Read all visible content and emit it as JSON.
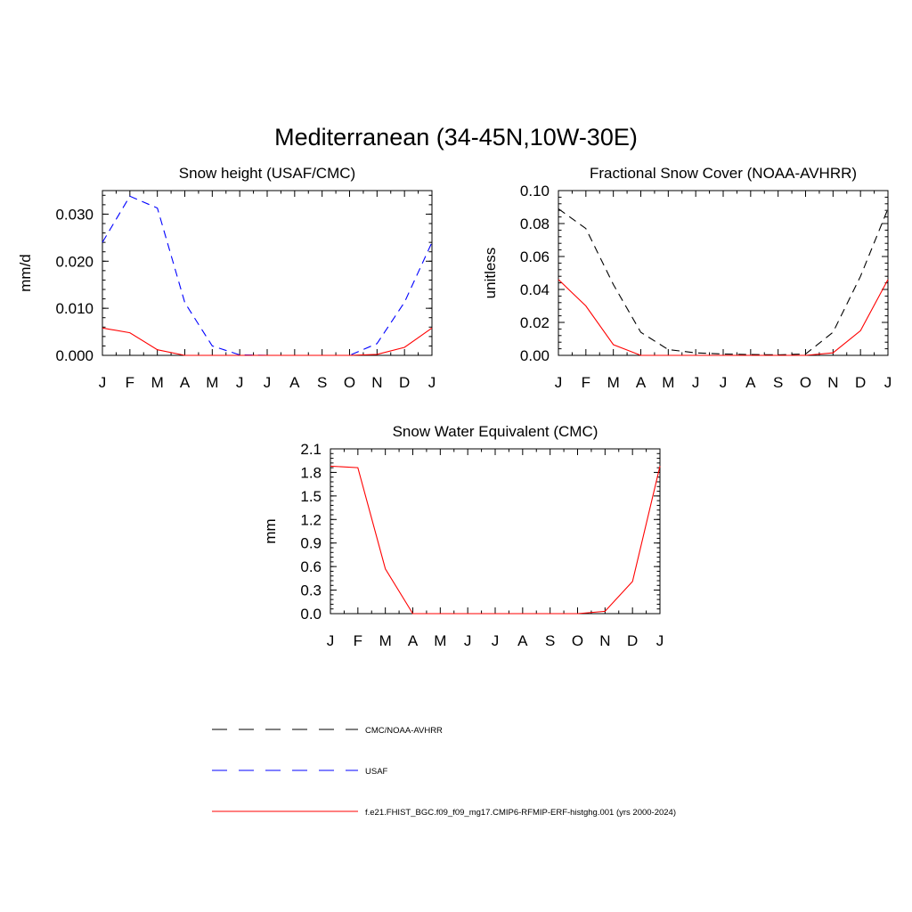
{
  "figure": {
    "title": "Mediterranean (34-45N,10W-30E)"
  },
  "legend": [
    {
      "label": "CMC/NOAA-AVHRR",
      "color": "#000000",
      "dash": "dashed"
    },
    {
      "label": "USAF",
      "color": "#0000ff",
      "dash": "dashed"
    },
    {
      "label": "f.e21.FHIST_BGC.f09_f09_mg17.CMIP6-RFMIP-ERF-histghg.001 (yrs 2000-2024)",
      "color": "#ff0000",
      "dash": "solid"
    }
  ],
  "chart_data": [
    {
      "type": "line",
      "title": "Snow height (USAF/CMC)",
      "ylabel": "mm/d",
      "xlabel": "",
      "categories": [
        "J",
        "F",
        "M",
        "A",
        "M",
        "J",
        "J",
        "A",
        "S",
        "O",
        "N",
        "D",
        "J"
      ],
      "ylim": [
        0,
        0.035
      ],
      "yticks": [
        "0.000",
        "0.010",
        "0.020",
        "0.030"
      ],
      "ytick_values": [
        0,
        0.01,
        0.02,
        0.03
      ],
      "series": [
        {
          "name": "USAF",
          "color": "#0000ff",
          "dash": "dashed",
          "values": [
            0.024,
            0.0338,
            0.0313,
            0.0112,
            0.002,
            0.0001,
            0,
            0,
            0,
            0,
            0.0025,
            0.0113,
            0.024
          ]
        },
        {
          "name": "f.e21.FHIST_BGC.f09_f09_mg17.CMIP6-RFMIP-ERF-histghg.001 (yrs 2000-2024)",
          "color": "#ff0000",
          "dash": "solid",
          "values": [
            0.0058,
            0.0048,
            0.0012,
            0,
            0,
            0,
            0,
            0,
            0,
            0,
            0.0002,
            0.0017,
            0.0058
          ]
        }
      ]
    },
    {
      "type": "line",
      "title": "Fractional Snow Cover (NOAA-AVHRR)",
      "ylabel": "unitless",
      "xlabel": "",
      "categories": [
        "J",
        "F",
        "M",
        "A",
        "M",
        "J",
        "J",
        "A",
        "S",
        "O",
        "N",
        "D",
        "J"
      ],
      "ylim": [
        0,
        0.1
      ],
      "yticks": [
        "0.00",
        "0.02",
        "0.04",
        "0.06",
        "0.08",
        "0.10"
      ],
      "ytick_values": [
        0,
        0.02,
        0.04,
        0.06,
        0.08,
        0.1
      ],
      "series": [
        {
          "name": "CMC/NOAA-AVHRR",
          "color": "#000000",
          "dash": "dashed",
          "values": [
            0.089,
            0.077,
            0.043,
            0.014,
            0.0035,
            0.0015,
            0.0008,
            0.0005,
            0.0003,
            0.0008,
            0.014,
            0.048,
            0.089
          ]
        },
        {
          "name": "f.e21.FHIST_BGC.f09_f09_mg17.CMIP6-RFMIP-ERF-histghg.001 (yrs 2000-2024)",
          "color": "#ff0000",
          "dash": "solid",
          "values": [
            0.046,
            0.03,
            0.0065,
            0,
            0,
            0,
            0,
            0,
            0,
            0,
            0.0015,
            0.015,
            0.046
          ]
        }
      ]
    },
    {
      "type": "line",
      "title": "Snow Water Equivalent (CMC)",
      "ylabel": "mm",
      "xlabel": "",
      "categories": [
        "J",
        "F",
        "M",
        "A",
        "M",
        "J",
        "J",
        "A",
        "S",
        "O",
        "N",
        "D",
        "J"
      ],
      "ylim": [
        0,
        2.1
      ],
      "yticks": [
        "0.0",
        "0.3",
        "0.6",
        "0.9",
        "1.2",
        "1.5",
        "1.8",
        "2.1"
      ],
      "ytick_values": [
        0,
        0.3,
        0.6,
        0.9,
        1.2,
        1.5,
        1.8,
        2.1
      ],
      "series": [
        {
          "name": "CMC/NOAA-AVHRR",
          "color": "#000000",
          "dash": "dashed",
          "values": [
            0,
            0,
            0,
            0,
            0,
            0,
            0,
            0,
            0,
            0,
            0,
            0,
            0
          ]
        },
        {
          "name": "f.e21.FHIST_BGC.f09_f09_mg17.CMIP6-RFMIP-ERF-histghg.001 (yrs 2000-2024)",
          "color": "#ff0000",
          "dash": "solid",
          "values": [
            1.88,
            1.86,
            0.57,
            0,
            0,
            0,
            0,
            0,
            0,
            0,
            0.03,
            0.41,
            1.88
          ]
        }
      ]
    }
  ]
}
